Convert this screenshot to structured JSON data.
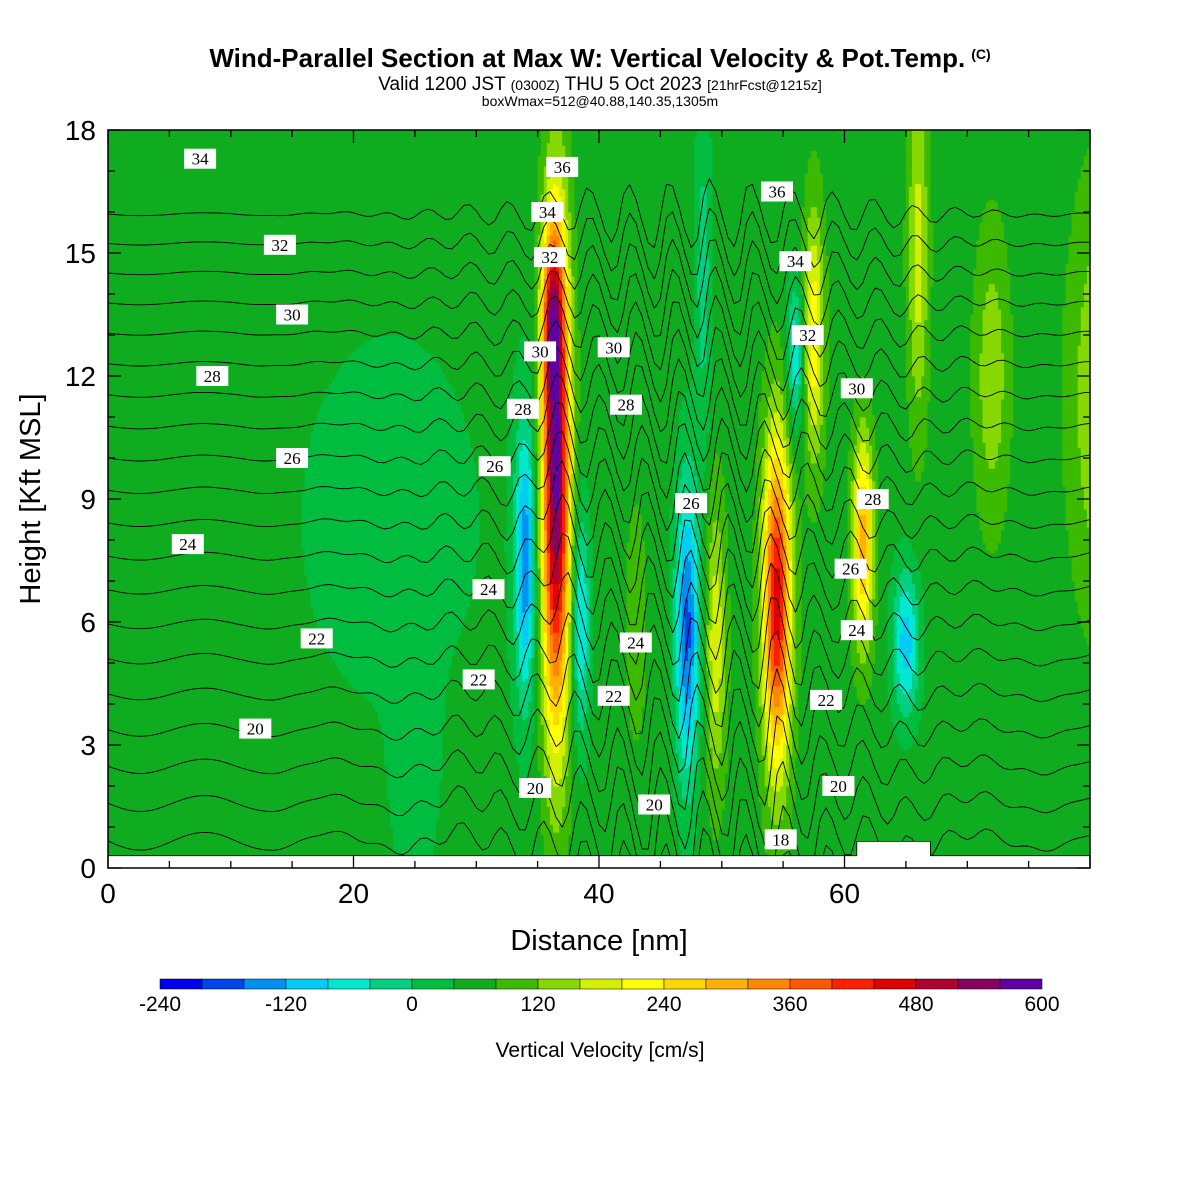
{
  "title": {
    "main": "Wind-Parallel Section at Max W: Vertical Velocity & Pot.Temp.",
    "copyright": "(C)",
    "valid_prefix": "Valid 1200 JST",
    "valid_utc": "(0300Z)",
    "valid_date": "THU 5 Oct 2023",
    "fcst": "[21hrFcst@1215z]",
    "boxinfo": "boxWmax=512@40.88,140.35,1305m"
  },
  "chart_data": {
    "type": "heatmap",
    "xlabel": "Distance [nm]",
    "ylabel": "Height [Kft MSL]",
    "xlim": [
      0,
      80
    ],
    "ylim": [
      0,
      18
    ],
    "xticks": [
      0,
      20,
      40,
      60
    ],
    "yticks": [
      0,
      3,
      6,
      9,
      12,
      15,
      18
    ],
    "grid": false,
    "shaded_field": "Vertical Velocity [cm/s]",
    "background_w": 60,
    "w_features": [
      {
        "x": 36.5,
        "z": 9.5,
        "sx": 0.8,
        "sz": 4.2,
        "w": 520
      },
      {
        "x": 36.2,
        "z": 13.5,
        "sx": 0.6,
        "sz": 1.5,
        "w": 220
      },
      {
        "x": 34.0,
        "z": 7.5,
        "sx": 0.6,
        "sz": 2.4,
        "w": -200
      },
      {
        "x": 38.5,
        "z": 6.0,
        "sx": 0.5,
        "sz": 2.0,
        "w": -150
      },
      {
        "x": 47.2,
        "z": 5.8,
        "sx": 0.7,
        "sz": 2.6,
        "w": -230
      },
      {
        "x": 49.5,
        "z": 5.5,
        "sx": 0.6,
        "sz": 2.5,
        "w": 130
      },
      {
        "x": 54.5,
        "z": 6.5,
        "sx": 0.8,
        "sz": 2.8,
        "w": 400
      },
      {
        "x": 57.5,
        "z": 13.0,
        "sx": 0.6,
        "sz": 2.2,
        "w": 170
      },
      {
        "x": 56.0,
        "z": 12.5,
        "sx": 0.5,
        "sz": 1.3,
        "w": -140
      },
      {
        "x": 61.5,
        "z": 8.0,
        "sx": 0.6,
        "sz": 1.8,
        "w": 240
      },
      {
        "x": 65.0,
        "z": 5.5,
        "sx": 0.8,
        "sz": 1.3,
        "w": -160
      },
      {
        "x": 23.0,
        "z": 8.5,
        "sx": 8.0,
        "sz": 5.0,
        "w": -30
      },
      {
        "x": 81.0,
        "z": 11.5,
        "sx": 1.8,
        "sz": 3.5,
        "w": 110
      },
      {
        "x": 66.0,
        "z": 15.0,
        "sx": 0.6,
        "sz": 3.0,
        "w": 120
      },
      {
        "x": 72.0,
        "z": 12.0,
        "sx": 1.0,
        "sz": 2.5,
        "w": 90
      },
      {
        "x": 48.5,
        "z": 14.5,
        "sx": 0.5,
        "sz": 3.0,
        "w": -80
      },
      {
        "x": 43.0,
        "z": 6.0,
        "sx": 0.6,
        "sz": 2.0,
        "w": 60
      },
      {
        "x": 25.0,
        "z": 2.0,
        "sx": 1.2,
        "sz": 2.0,
        "w": -40
      }
    ],
    "theta_levels": [
      18,
      19,
      20,
      21,
      22,
      23,
      24,
      25,
      26,
      27,
      28,
      29,
      30,
      31,
      32,
      33,
      34,
      35,
      36,
      37,
      38
    ],
    "theta_labels": [
      {
        "text": "34",
        "x": 7.5,
        "z": 17.3
      },
      {
        "text": "32",
        "x": 14.0,
        "z": 15.2
      },
      {
        "text": "30",
        "x": 15.0,
        "z": 13.5
      },
      {
        "text": "28",
        "x": 8.5,
        "z": 12.0
      },
      {
        "text": "26",
        "x": 15.0,
        "z": 10.0
      },
      {
        "text": "24",
        "x": 6.5,
        "z": 7.9
      },
      {
        "text": "22",
        "x": 17.0,
        "z": 5.6
      },
      {
        "text": "20",
        "x": 12.0,
        "z": 3.4
      },
      {
        "text": "36",
        "x": 37.0,
        "z": 17.1
      },
      {
        "text": "34",
        "x": 35.8,
        "z": 16.0
      },
      {
        "text": "32",
        "x": 36.0,
        "z": 14.9
      },
      {
        "text": "30",
        "x": 35.2,
        "z": 12.6
      },
      {
        "text": "28",
        "x": 33.8,
        "z": 11.2
      },
      {
        "text": "26",
        "x": 31.5,
        "z": 9.8
      },
      {
        "text": "24",
        "x": 31.0,
        "z": 6.8
      },
      {
        "text": "22",
        "x": 30.2,
        "z": 4.6
      },
      {
        "text": "20",
        "x": 34.8,
        "z": 1.95
      },
      {
        "text": "30",
        "x": 41.2,
        "z": 12.7
      },
      {
        "text": "28",
        "x": 42.2,
        "z": 11.3
      },
      {
        "text": "26",
        "x": 47.5,
        "z": 8.9
      },
      {
        "text": "24",
        "x": 43.0,
        "z": 5.5
      },
      {
        "text": "22",
        "x": 41.2,
        "z": 4.2
      },
      {
        "text": "20",
        "x": 44.5,
        "z": 1.55
      },
      {
        "text": "36",
        "x": 54.5,
        "z": 16.5
      },
      {
        "text": "34",
        "x": 56.0,
        "z": 14.8
      },
      {
        "text": "32",
        "x": 57.0,
        "z": 13.0
      },
      {
        "text": "30",
        "x": 61.0,
        "z": 11.7
      },
      {
        "text": "28",
        "x": 62.3,
        "z": 9.0
      },
      {
        "text": "26",
        "x": 60.5,
        "z": 7.3
      },
      {
        "text": "24",
        "x": 61.0,
        "z": 5.8
      },
      {
        "text": "22",
        "x": 58.5,
        "z": 4.1
      },
      {
        "text": "20",
        "x": 59.5,
        "z": 2.0
      },
      {
        "text": "18",
        "x": 54.8,
        "z": 0.7
      }
    ],
    "colorbar": {
      "label": "Vertical Velocity [cm/s]",
      "bounds": [
        -240,
        -200,
        -160,
        -120,
        -80,
        -40,
        0,
        40,
        80,
        120,
        160,
        200,
        240,
        280,
        320,
        360,
        400,
        440,
        480,
        520,
        560,
        600
      ],
      "colors": [
        "#0000ee",
        "#0044ee",
        "#0090f0",
        "#00ccf5",
        "#00e8d0",
        "#00d080",
        "#00bd40",
        "#10ac20",
        "#3cba00",
        "#86d800",
        "#d2f000",
        "#ffff00",
        "#ffd800",
        "#ffb000",
        "#ff8800",
        "#ff5800",
        "#ff2000",
        "#e00000",
        "#b00030",
        "#880060",
        "#6000a0"
      ],
      "tick_labels": [
        "-240",
        "-120",
        "0",
        "120",
        "240",
        "360",
        "480",
        "600"
      ]
    }
  }
}
